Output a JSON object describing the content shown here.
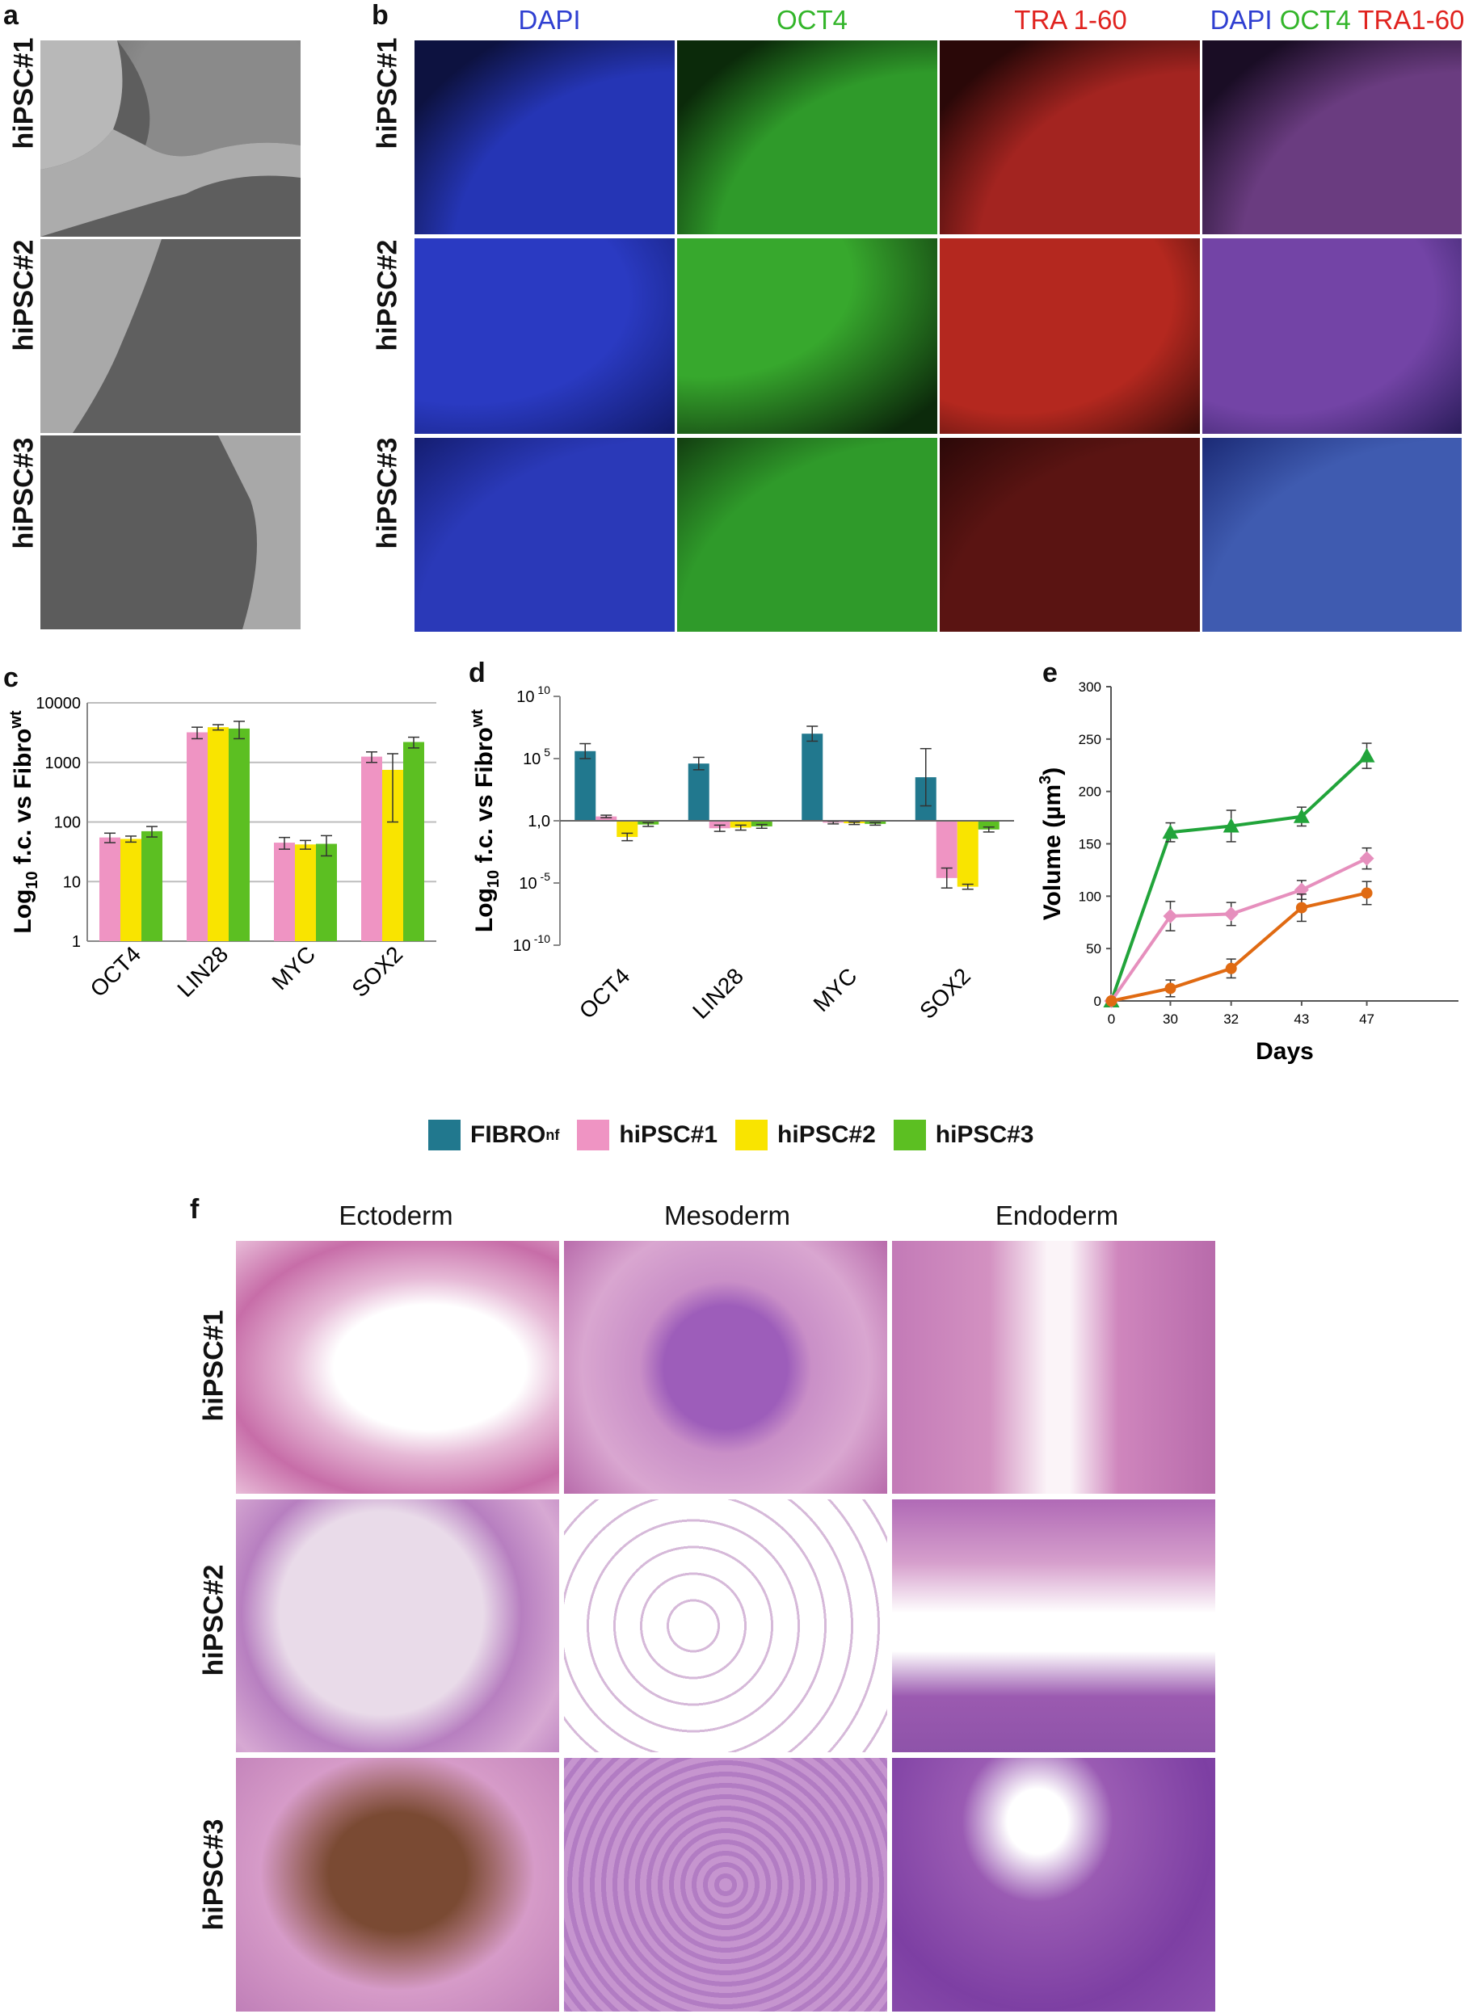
{
  "panels": {
    "a": {
      "letter": "a",
      "rows": [
        "hiPSC#1",
        "hiPSC#2",
        "hiPSC#3"
      ]
    },
    "b": {
      "letter": "b",
      "columns": [
        "DAPI",
        "OCT4",
        "TRA 1-60"
      ],
      "merge": {
        "dapi": "DAPI",
        "oct4": "OCT4",
        "tra": "TRA1-60"
      },
      "rows": [
        "hiPSC#1",
        "hiPSC#2",
        "hiPSC#3"
      ]
    },
    "c": {
      "letter": "c"
    },
    "d": {
      "letter": "d"
    },
    "e": {
      "letter": "e"
    },
    "f": {
      "letter": "f",
      "columns": [
        "Ectoderm",
        "Mesoderm",
        "Endoderm"
      ],
      "rows": [
        "hiPSC#1",
        "hiPSC#2",
        "hiPSC#3"
      ]
    }
  },
  "legend": [
    {
      "name": "FIBRO",
      "sup": "nf",
      "color": "#21788e"
    },
    {
      "name": "hiPSC#1",
      "sup": "",
      "color": "#ef94c3"
    },
    {
      "name": "hiPSC#2",
      "sup": "",
      "color": "#f9e400"
    },
    {
      "name": "hiPSC#3",
      "sup": "",
      "color": "#5cbf22"
    }
  ],
  "colors": {
    "fibro": "#21788e",
    "h1": "#ef94c3",
    "h2": "#f9e400",
    "h3": "#5cbf22",
    "line_green": "#21a43a",
    "line_pink": "#e68fbd",
    "line_orange": "#e06a12",
    "dapi": "#2f3fd1",
    "oct4": "#33b52a",
    "tra": "#e0231f"
  },
  "chart_data": [
    {
      "type": "bar",
      "id": "c",
      "ylabel_main": "Log",
      "ylabel_sub": "10",
      "ylabel_rest": " f.c. vs Fibro",
      "ylabel_sup": "wt",
      "ylim": [
        1,
        10000
      ],
      "yscale": "log",
      "ytick_labels": [
        "1",
        "10",
        "100",
        "1000",
        "10000"
      ],
      "yticks": [
        1,
        10,
        100,
        1000,
        10000
      ],
      "categories": [
        "OCT4",
        "LIN28",
        "MYC",
        "SOX2"
      ],
      "series": [
        {
          "name": "hiPSC#1",
          "values": [
            55,
            3200,
            45,
            1250
          ],
          "err": [
            10,
            700,
            10,
            250
          ]
        },
        {
          "name": "hiPSC#2",
          "values": [
            52,
            3900,
            42,
            750
          ],
          "err": [
            6,
            400,
            7,
            650
          ]
        },
        {
          "name": "hiPSC#3",
          "values": [
            70,
            3700,
            43,
            2200
          ],
          "err": [
            14,
            1200,
            16,
            450
          ]
        }
      ],
      "grid": true
    },
    {
      "type": "bar",
      "id": "d",
      "ylabel_main": "Log",
      "ylabel_sub": "10",
      "ylabel_rest": " f.c. vs Fibro",
      "ylabel_sup": "wt",
      "ylim": [
        -10,
        10
      ],
      "yscale": "log",
      "yticks": [
        {
          "value": 10,
          "base": "10",
          "exp": " 10"
        },
        {
          "value": 5,
          "base": "10",
          "exp": " 5"
        },
        {
          "value": 0,
          "base": "1,0",
          "exp": ""
        },
        {
          "value": -5,
          "base": "10",
          "exp": " -5"
        },
        {
          "value": -10,
          "base": "10",
          "exp": " -10"
        }
      ],
      "categories": [
        "OCT4",
        "LIN28",
        "MYC",
        "SOX2"
      ],
      "series": [
        {
          "name": "FIBRO",
          "values": [
            5.6,
            4.6,
            7.0,
            3.5
          ],
          "err": [
            0.6,
            0.5,
            0.6,
            2.3
          ]
        },
        {
          "name": "hiPSC#1",
          "values": [
            0.35,
            -0.6,
            -0.15,
            -4.6
          ],
          "err": [
            0.1,
            0.25,
            0.1,
            0.8
          ]
        },
        {
          "name": "hiPSC#2",
          "values": [
            -1.3,
            -0.55,
            -0.2,
            -5.3
          ],
          "err": [
            0.3,
            0.2,
            0.1,
            0.2
          ]
        },
        {
          "name": "hiPSC#3",
          "values": [
            -0.3,
            -0.45,
            -0.25,
            -0.7
          ],
          "err": [
            0.15,
            0.15,
            0.1,
            0.2
          ]
        }
      ]
    },
    {
      "type": "line",
      "id": "e",
      "ylabel": "Volume (µm",
      "ylabel_sup": "3",
      "ylabel_end": ")",
      "xlabel": "Days",
      "x": [
        "0",
        "30",
        "32",
        "43",
        "47"
      ],
      "ylim": [
        0,
        300
      ],
      "yticks": [
        0,
        50,
        100,
        150,
        200,
        250,
        300
      ],
      "series": [
        {
          "name": "hiPSC#3",
          "marker": "triangle",
          "values": [
            0,
            161,
            167,
            176,
            234
          ],
          "err": [
            0,
            9,
            15,
            9,
            12
          ]
        },
        {
          "name": "hiPSC#1",
          "marker": "diamond",
          "values": [
            0,
            81,
            83,
            106,
            136
          ],
          "err": [
            0,
            14,
            11,
            9,
            10
          ]
        },
        {
          "name": "hiPSC#2",
          "marker": "circle",
          "values": [
            0,
            12,
            31,
            89,
            103
          ],
          "err": [
            0,
            8,
            9,
            13,
            11
          ]
        }
      ],
      "grid": false
    }
  ]
}
